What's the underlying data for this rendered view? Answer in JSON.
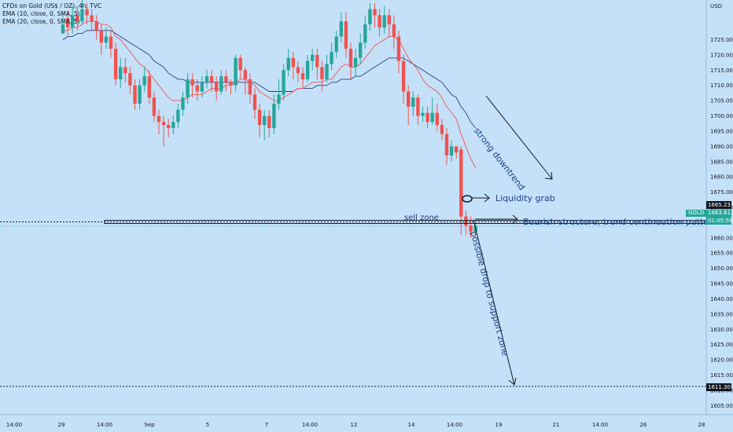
{
  "chart_data": {
    "type": "candlestick",
    "legend": {
      "symbol": "CFDs on Gold (US$ / OZ), 4h, TVC",
      "ema1": "EMA (10, close, 0, SMA, 5)",
      "ema2": "EMA (20, close, 0, SMA, 5)"
    },
    "currency": "USD",
    "ylim": [
      1602,
      1738
    ],
    "y_ticks": [
      1605,
      1610,
      1615,
      1620,
      1625,
      1630,
      1635,
      1640,
      1645,
      1650,
      1655,
      1660,
      1670,
      1675,
      1680,
      1685,
      1690,
      1695,
      1700,
      1705,
      1710,
      1715,
      1720,
      1725
    ],
    "x_ticks": [
      "14:00",
      "29",
      "14:00",
      "Sep",
      "5",
      "7",
      "14:00",
      "12",
      "14",
      "14:00",
      "19",
      "21",
      "14:00",
      "26",
      "28"
    ],
    "candles": [
      [
        1727,
        1730,
        1727,
        1734
      ],
      [
        1732,
        1729,
        1726,
        1734
      ],
      [
        1729,
        1733,
        1727,
        1736
      ],
      [
        1733,
        1731,
        1728,
        1736
      ],
      [
        1731,
        1735,
        1730,
        1738
      ],
      [
        1735,
        1733,
        1730,
        1737
      ],
      [
        1733,
        1731,
        1728,
        1735
      ],
      [
        1731,
        1728,
        1725,
        1733
      ],
      [
        1728,
        1724,
        1720,
        1730
      ],
      [
        1724,
        1726,
        1722,
        1729
      ],
      [
        1726,
        1722,
        1719,
        1728
      ],
      [
        1722,
        1712,
        1710,
        1724
      ],
      [
        1712,
        1716,
        1709,
        1719
      ],
      [
        1716,
        1714,
        1711,
        1719
      ],
      [
        1714,
        1710,
        1707,
        1716
      ],
      [
        1710,
        1704,
        1702,
        1712
      ],
      [
        1704,
        1710,
        1702,
        1712
      ],
      [
        1710,
        1713,
        1708,
        1716
      ],
      [
        1713,
        1706,
        1704,
        1715
      ],
      [
        1706,
        1700,
        1698,
        1708
      ],
      [
        1700,
        1698,
        1694,
        1702
      ],
      [
        1698,
        1697,
        1690,
        1700
      ],
      [
        1697,
        1696,
        1693,
        1699
      ],
      [
        1696,
        1698,
        1694,
        1700
      ],
      [
        1698,
        1702,
        1696,
        1704
      ],
      [
        1702,
        1706,
        1700,
        1708
      ],
      [
        1706,
        1712,
        1704,
        1714
      ],
      [
        1712,
        1710,
        1706,
        1714
      ],
      [
        1710,
        1708,
        1705,
        1712
      ],
      [
        1708,
        1711,
        1706,
        1713
      ],
      [
        1711,
        1713,
        1709,
        1715
      ],
      [
        1713,
        1711,
        1708,
        1715
      ],
      [
        1711,
        1708,
        1705,
        1713
      ],
      [
        1708,
        1713,
        1707,
        1715
      ],
      [
        1713,
        1711,
        1708,
        1715
      ],
      [
        1711,
        1710,
        1707,
        1712
      ],
      [
        1710,
        1719,
        1708,
        1720
      ],
      [
        1719,
        1715,
        1712,
        1720
      ],
      [
        1715,
        1712,
        1707,
        1716
      ],
      [
        1712,
        1707,
        1704,
        1714
      ],
      [
        1707,
        1702,
        1699,
        1709
      ],
      [
        1702,
        1697,
        1693,
        1704
      ],
      [
        1697,
        1700,
        1692,
        1702
      ],
      [
        1700,
        1696,
        1693,
        1702
      ],
      [
        1696,
        1704,
        1694,
        1707
      ],
      [
        1704,
        1707,
        1702,
        1712
      ],
      [
        1707,
        1715,
        1705,
        1717
      ],
      [
        1715,
        1719,
        1713,
        1722
      ],
      [
        1719,
        1716,
        1712,
        1721
      ],
      [
        1716,
        1714,
        1711,
        1718
      ],
      [
        1714,
        1712,
        1709,
        1716
      ],
      [
        1712,
        1718,
        1711,
        1720
      ],
      [
        1718,
        1720,
        1715,
        1722
      ],
      [
        1720,
        1716,
        1712,
        1722
      ],
      [
        1716,
        1712,
        1708,
        1718
      ],
      [
        1712,
        1717,
        1711,
        1720
      ],
      [
        1717,
        1721,
        1715,
        1724
      ],
      [
        1721,
        1726,
        1719,
        1728
      ],
      [
        1726,
        1731,
        1724,
        1734
      ],
      [
        1731,
        1722,
        1719,
        1734
      ],
      [
        1722,
        1716,
        1712,
        1724
      ],
      [
        1716,
        1719,
        1713,
        1722
      ],
      [
        1719,
        1724,
        1717,
        1727
      ],
      [
        1724,
        1730,
        1722,
        1733
      ],
      [
        1730,
        1735,
        1728,
        1737
      ],
      [
        1735,
        1733,
        1729,
        1737
      ],
      [
        1733,
        1729,
        1726,
        1735
      ],
      [
        1729,
        1733,
        1727,
        1736
      ],
      [
        1733,
        1730,
        1726,
        1735
      ],
      [
        1730,
        1726,
        1722,
        1733
      ],
      [
        1726,
        1718,
        1714,
        1728
      ],
      [
        1718,
        1708,
        1704,
        1720
      ],
      [
        1708,
        1703,
        1697,
        1710
      ],
      [
        1703,
        1706,
        1700,
        1708
      ],
      [
        1706,
        1700,
        1697,
        1707
      ],
      [
        1700,
        1701,
        1698,
        1703
      ],
      [
        1701,
        1698,
        1696,
        1703
      ],
      [
        1698,
        1701,
        1697,
        1706
      ],
      [
        1701,
        1697,
        1695,
        1704
      ],
      [
        1697,
        1694,
        1692,
        1699
      ],
      [
        1694,
        1687,
        1684,
        1696
      ],
      [
        1687,
        1690,
        1685,
        1692
      ],
      [
        1690,
        1688,
        1686,
        1690
      ],
      [
        1689,
        1667,
        1661,
        1690
      ],
      [
        1667,
        1664,
        1661,
        1669
      ],
      [
        1664,
        1662,
        1660,
        1667
      ],
      [
        1662,
        1664,
        1661,
        1665
      ]
    ],
    "ema10": [
      1728,
      1728,
      1729,
      1729,
      1730,
      1731,
      1731,
      1731,
      1730,
      1730,
      1729,
      1726,
      1725,
      1723,
      1721,
      1719,
      1717,
      1716,
      1714,
      1712,
      1710,
      1708,
      1706,
      1705,
      1705,
      1705,
      1706,
      1707,
      1707,
      1707,
      1708,
      1709,
      1709,
      1709,
      1710,
      1710,
      1711,
      1712,
      1712,
      1711,
      1710,
      1708,
      1707,
      1706,
      1705,
      1705,
      1706,
      1707,
      1708,
      1709,
      1709,
      1710,
      1711,
      1711,
      1711,
      1712,
      1712,
      1714,
      1716,
      1717,
      1716,
      1716,
      1717,
      1719,
      1721,
      1723,
      1724,
      1725,
      1726,
      1726,
      1725,
      1722,
      1719,
      1717,
      1715,
      1712,
      1710,
      1709,
      1708,
      1706,
      1703,
      1701,
      1699,
      1694,
      1690,
      1686,
      1683
    ],
    "ema20": [
      1725,
      1726,
      1726,
      1727,
      1727,
      1728,
      1728,
      1728,
      1728,
      1728,
      1728,
      1727,
      1726,
      1725,
      1724,
      1723,
      1722,
      1721,
      1720,
      1718,
      1717,
      1716,
      1714,
      1713,
      1712,
      1712,
      1711,
      1711,
      1711,
      1711,
      1711,
      1711,
      1711,
      1711,
      1711,
      1711,
      1711,
      1711,
      1711,
      1711,
      1711,
      1710,
      1709,
      1708,
      1708,
      1708,
      1708,
      1708,
      1708,
      1709,
      1709,
      1709,
      1709,
      1710,
      1710,
      1710,
      1711,
      1711,
      1712,
      1712,
      1712,
      1713,
      1713,
      1714,
      1715,
      1716,
      1717,
      1718,
      1719,
      1719,
      1719,
      1719,
      1718,
      1717,
      1716,
      1715,
      1714,
      1713,
      1712,
      1711,
      1709,
      1707,
      1706,
      1703,
      1701,
      1698,
      1696
    ],
    "levels": [
      {
        "price_label": "1665.23",
        "value": 1665.23
      },
      {
        "price_label": "1611.30",
        "value": 1611.3
      }
    ],
    "current": {
      "symbol": "GOLD",
      "price": "1663.81",
      "countdown": "01:05:58",
      "value": 1663.81
    },
    "annotations": {
      "downtrend": "strong downtrend",
      "liquidity": "Liquidity grab",
      "sell_zone": "sell zone",
      "structure": "Bearish structure, trend continuation pattern",
      "drop": "possible drop to support zone"
    },
    "colors": {
      "up": "#26a69a",
      "down": "#ef5350",
      "background": "#c4e1f9",
      "ema10": "#ef5350",
      "ema20": "#2a3b7d",
      "annotation": "#1d3f87"
    }
  }
}
